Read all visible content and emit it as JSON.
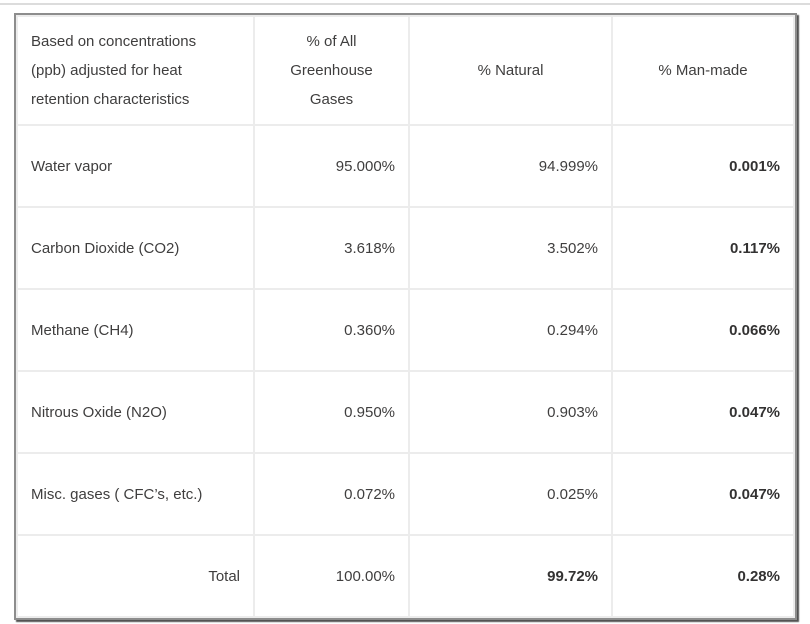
{
  "colors": {
    "background": "#ffffff",
    "text": "#3f3e3e",
    "grid_line": "#ececec",
    "outer_border": "#8d8d8d",
    "page_divider": "#dcdcdc"
  },
  "chart_data": {
    "type": "table",
    "columns": [
      "Based on concentrations\n(ppb) adjusted for heat\nretention characteristics",
      "% of All\nGreenhouse\nGases",
      "% Natural",
      "% Man-made"
    ],
    "rows": [
      [
        "Water vapor",
        "95.000%",
        "94.999%",
        "0.001%"
      ],
      [
        "Carbon Dioxide (CO2)",
        "3.618%",
        "3.502%",
        "0.117%"
      ],
      [
        "Methane (CH4)",
        "0.360%",
        "0.294%",
        "0.066%"
      ],
      [
        "Nitrous Oxide (N2O)",
        "0.950%",
        "0.903%",
        "0.047%"
      ],
      [
        "Misc. gases ( CFC’s, etc.)",
        "0.072%",
        "0.025%",
        "0.047%"
      ],
      [
        "Total",
        "100.00%",
        "99.72%",
        "0.28%"
      ]
    ],
    "layout_hints": {
      "column_alignment": [
        "left",
        "right",
        "right",
        "right"
      ],
      "header_alignment": [
        "left",
        "center",
        "center",
        "center"
      ],
      "bold_cells": "all man-made column values; total row % Natural and % Man-made values",
      "total_label_alignment": "right"
    }
  }
}
